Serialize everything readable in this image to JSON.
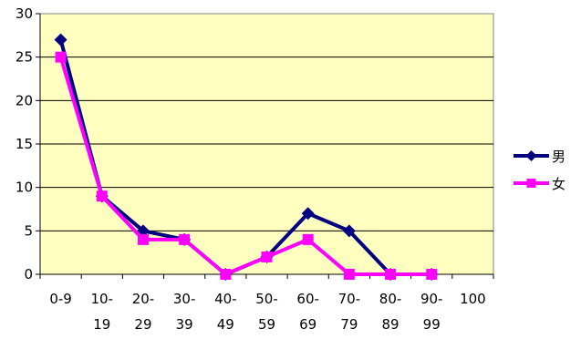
{
  "chart_data": {
    "type": "line",
    "categories": [
      [
        "0-9"
      ],
      [
        "10-",
        "19"
      ],
      [
        "20-",
        "29"
      ],
      [
        "30-",
        "39"
      ],
      [
        "40-",
        "49"
      ],
      [
        "50-",
        "59"
      ],
      [
        "60-",
        "69"
      ],
      [
        "70-",
        "79"
      ],
      [
        "80-",
        "89"
      ],
      [
        "90-",
        "99"
      ],
      [
        "100"
      ]
    ],
    "series": [
      {
        "name": "男",
        "values": [
          27,
          9,
          5,
          4,
          0,
          2,
          7,
          5,
          0,
          0,
          null
        ],
        "color": "#000080",
        "marker": "diamond"
      },
      {
        "name": "女",
        "values": [
          25,
          9,
          4,
          4,
          0,
          2,
          4,
          0,
          0,
          0,
          null
        ],
        "color": "#ff00ff",
        "marker": "square"
      }
    ],
    "ylim": [
      0,
      30
    ],
    "yticks": [
      0,
      5,
      10,
      15,
      20,
      25,
      30
    ],
    "grid": true,
    "legend_position": "right",
    "plot_background": "#ffffc0"
  }
}
